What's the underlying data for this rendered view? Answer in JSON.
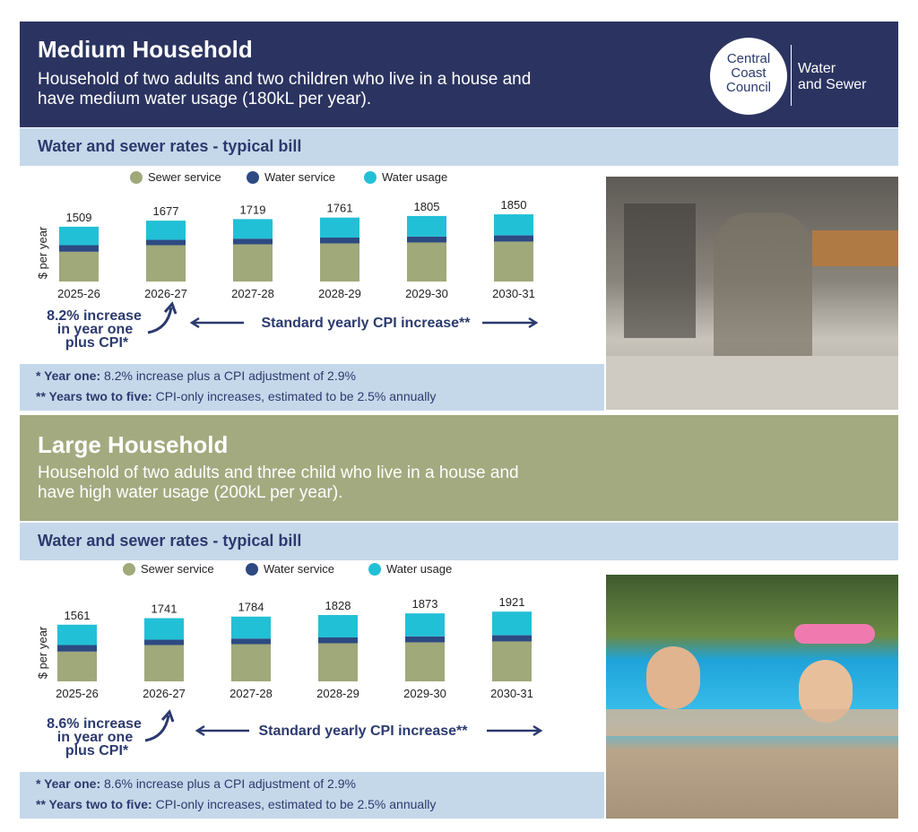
{
  "brand": {
    "council_line1": "Central",
    "council_line2": "Coast",
    "council_line3": "Council",
    "division_line1": "Water",
    "division_line2": "and Sewer"
  },
  "colors": {
    "sewer": "#9fa97a",
    "service": "#2d4a82",
    "usage": "#22c0d6",
    "navy": "#2b3a6e",
    "olive": "#a3aa7f"
  },
  "medium": {
    "title": "Medium Household",
    "desc_line1": "Household of two adults and two children who live in a house and",
    "desc_line2": "have medium water usage (180kL per year).",
    "subtitle": "Water and sewer rates - typical bill",
    "legend": [
      "Sewer service",
      "Water service",
      "Water usage"
    ],
    "ylabel": "$ per year",
    "annot_line1": "8.2% increase",
    "annot_line2": "in year one",
    "annot_line3": "plus CPI*",
    "cpi_label": "Standard yearly CPI increase**",
    "note1_bold": "* Year one:",
    "note1_text": " 8.2% increase plus a CPI adjustment of 2.9%",
    "note2_bold": "** Years two to five:",
    "note2_text": " CPI-only increases, estimated to be 2.5% annually"
  },
  "large": {
    "title": "Large Household",
    "desc_line1": "Household of two adults and three child who live in a house and",
    "desc_line2": "have high water usage (200kL per year).",
    "subtitle": "Water and sewer rates - typical bill",
    "legend": [
      "Sewer service",
      "Water service",
      "Water usage"
    ],
    "ylabel": "$ per year",
    "annot_line1": "8.6% increase",
    "annot_line2": "in year one",
    "annot_line3": "plus CPI*",
    "cpi_label": "Standard yearly CPI increase**",
    "note1_bold": "* Year one:",
    "note1_text": " 8.6% increase plus a CPI adjustment of 2.9%",
    "note2_bold": "** Years two to five:",
    "note2_text": " CPI-only increases, estimated to be 2.5% annually"
  },
  "chart_data": [
    {
      "type": "bar",
      "stacked": true,
      "categories": [
        "2025-26",
        "2026-27",
        "2027-28",
        "2028-29",
        "2029-30",
        "2030-31"
      ],
      "totals": [
        1509,
        1677,
        1719,
        1761,
        1805,
        1850
      ],
      "series": [
        {
          "name": "Sewer service",
          "values": [
            820,
            1000,
            1025,
            1050,
            1075,
            1100
          ]
        },
        {
          "name": "Water service",
          "values": [
            180,
            150,
            155,
            160,
            165,
            170
          ]
        },
        {
          "name": "Water usage",
          "values": [
            509,
            527,
            539,
            551,
            565,
            580
          ]
        }
      ],
      "ylabel": "$ per year",
      "legend": "top"
    },
    {
      "type": "bar",
      "stacked": true,
      "categories": [
        "2025-26",
        "2026-27",
        "2027-28",
        "2028-29",
        "2029-30",
        "2030-31"
      ],
      "totals": [
        1561,
        1741,
        1784,
        1828,
        1873,
        1921
      ],
      "series": [
        {
          "name": "Sewer service",
          "values": [
            820,
            1000,
            1025,
            1050,
            1075,
            1100
          ]
        },
        {
          "name": "Water service",
          "values": [
            180,
            150,
            155,
            160,
            165,
            170
          ]
        },
        {
          "name": "Water usage",
          "values": [
            561,
            591,
            604,
            618,
            633,
            651
          ]
        }
      ],
      "ylabel": "$ per year",
      "legend": "top"
    }
  ]
}
